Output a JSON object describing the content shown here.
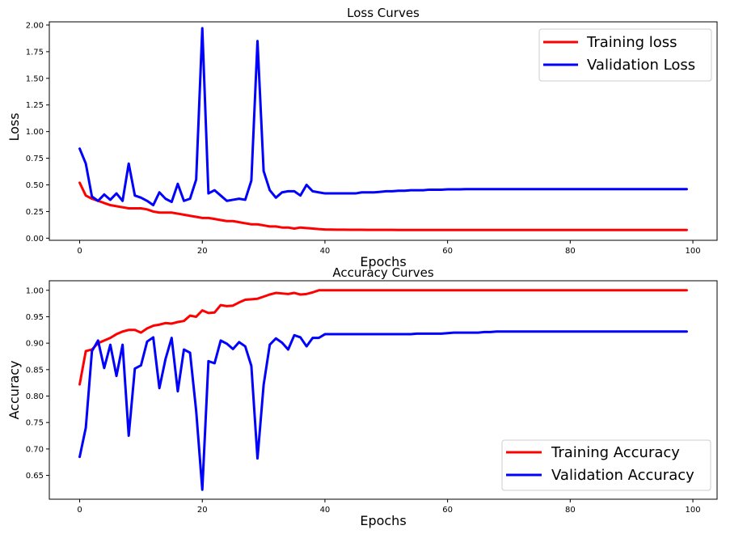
{
  "chart_data": [
    {
      "type": "line",
      "title": "Loss Curves",
      "xlabel": "Epochs",
      "ylabel": "Loss",
      "xlim": [
        -4.95,
        103.95
      ],
      "ylim": [
        -0.02,
        2.03
      ],
      "xticks": [
        0,
        20,
        40,
        60,
        80,
        100
      ],
      "xtick_labels": [
        "0",
        "20",
        "40",
        "60",
        "80",
        "100"
      ],
      "yticks": [
        0,
        0.25,
        0.5,
        0.75,
        1.0,
        1.25,
        1.5,
        1.75,
        2.0
      ],
      "ytick_labels": [
        "0.00",
        "0.25",
        "0.50",
        "0.75",
        "1.00",
        "1.25",
        "1.50",
        "1.75",
        "2.00"
      ],
      "grid": false,
      "legend_position": "top-right",
      "series": [
        {
          "name": "Training loss",
          "color": "#ff0000",
          "values": [
            0.52,
            0.4,
            0.37,
            0.35,
            0.33,
            0.31,
            0.3,
            0.29,
            0.28,
            0.28,
            0.28,
            0.27,
            0.25,
            0.24,
            0.24,
            0.24,
            0.23,
            0.22,
            0.21,
            0.2,
            0.19,
            0.19,
            0.18,
            0.17,
            0.16,
            0.16,
            0.15,
            0.14,
            0.13,
            0.13,
            0.12,
            0.11,
            0.11,
            0.1,
            0.1,
            0.09,
            0.1,
            0.095,
            0.09,
            0.085,
            0.082,
            0.081,
            0.08,
            0.08,
            0.079,
            0.079,
            0.079,
            0.078,
            0.078,
            0.078,
            0.078,
            0.078,
            0.077,
            0.077,
            0.077,
            0.077,
            0.077,
            0.077,
            0.077,
            0.077,
            0.077,
            0.077,
            0.077,
            0.077,
            0.077,
            0.077,
            0.077,
            0.077,
            0.077,
            0.077,
            0.077,
            0.077,
            0.077,
            0.077,
            0.077,
            0.077,
            0.077,
            0.077,
            0.077,
            0.077,
            0.077,
            0.077,
            0.077,
            0.077,
            0.077,
            0.077,
            0.077,
            0.077,
            0.077,
            0.077,
            0.077,
            0.077,
            0.077,
            0.077,
            0.077,
            0.077,
            0.077,
            0.077,
            0.077,
            0.077
          ]
        },
        {
          "name": "Validation Loss",
          "color": "#0000ff",
          "values": [
            0.84,
            0.7,
            0.39,
            0.35,
            0.41,
            0.36,
            0.42,
            0.35,
            0.7,
            0.4,
            0.38,
            0.35,
            0.31,
            0.43,
            0.37,
            0.34,
            0.51,
            0.35,
            0.37,
            0.55,
            1.97,
            0.42,
            0.45,
            0.4,
            0.35,
            0.36,
            0.37,
            0.36,
            0.54,
            1.85,
            0.63,
            0.45,
            0.38,
            0.43,
            0.44,
            0.44,
            0.4,
            0.5,
            0.44,
            0.43,
            0.42,
            0.42,
            0.42,
            0.42,
            0.42,
            0.42,
            0.43,
            0.43,
            0.43,
            0.435,
            0.44,
            0.44,
            0.445,
            0.445,
            0.45,
            0.45,
            0.45,
            0.455,
            0.455,
            0.455,
            0.458,
            0.458,
            0.458,
            0.46,
            0.46,
            0.46,
            0.46,
            0.46,
            0.46,
            0.46,
            0.46,
            0.46,
            0.46,
            0.46,
            0.46,
            0.46,
            0.46,
            0.46,
            0.46,
            0.46,
            0.46,
            0.46,
            0.46,
            0.46,
            0.46,
            0.46,
            0.46,
            0.46,
            0.46,
            0.46,
            0.46,
            0.46,
            0.46,
            0.46,
            0.46,
            0.46,
            0.46,
            0.46,
            0.46,
            0.46
          ]
        }
      ]
    },
    {
      "type": "line",
      "title": "Accuracy Curves",
      "xlabel": "Epochs",
      "ylabel": "Accuracy",
      "xlim": [
        -4.95,
        103.95
      ],
      "ylim": [
        0.605,
        1.018
      ],
      "xticks": [
        0,
        20,
        40,
        60,
        80,
        100
      ],
      "xtick_labels": [
        "0",
        "20",
        "40",
        "60",
        "80",
        "100"
      ],
      "yticks": [
        0.65,
        0.7,
        0.75,
        0.8,
        0.85,
        0.9,
        0.95,
        1.0
      ],
      "ytick_labels": [
        "0.65",
        "0.70",
        "0.75",
        "0.80",
        "0.85",
        "0.90",
        "0.95",
        "1.00"
      ],
      "grid": false,
      "legend_position": "bottom-right",
      "series": [
        {
          "name": "Training Accuracy",
          "color": "#ff0000",
          "values": [
            0.822,
            0.885,
            0.888,
            0.9,
            0.905,
            0.91,
            0.917,
            0.922,
            0.925,
            0.925,
            0.92,
            0.928,
            0.933,
            0.935,
            0.938,
            0.937,
            0.94,
            0.942,
            0.952,
            0.95,
            0.962,
            0.957,
            0.958,
            0.972,
            0.97,
            0.971,
            0.977,
            0.982,
            0.983,
            0.984,
            0.988,
            0.992,
            0.995,
            0.994,
            0.993,
            0.995,
            0.992,
            0.993,
            0.996,
            1.0,
            1.0,
            1.0,
            1.0,
            1.0,
            1.0,
            1.0,
            1.0,
            1.0,
            1.0,
            1.0,
            1.0,
            1.0,
            1.0,
            1.0,
            1.0,
            1.0,
            1.0,
            1.0,
            1.0,
            1.0,
            1.0,
            1.0,
            1.0,
            1.0,
            1.0,
            1.0,
            1.0,
            1.0,
            1.0,
            1.0,
            1.0,
            1.0,
            1.0,
            1.0,
            1.0,
            1.0,
            1.0,
            1.0,
            1.0,
            1.0,
            1.0,
            1.0,
            1.0,
            1.0,
            1.0,
            1.0,
            1.0,
            1.0,
            1.0,
            1.0,
            1.0,
            1.0,
            1.0,
            1.0,
            1.0,
            1.0,
            1.0,
            1.0,
            1.0,
            1.0
          ]
        },
        {
          "name": "Validation Accuracy",
          "color": "#0000ff",
          "values": [
            0.685,
            0.74,
            0.885,
            0.905,
            0.853,
            0.897,
            0.838,
            0.897,
            0.725,
            0.852,
            0.858,
            0.903,
            0.911,
            0.815,
            0.87,
            0.91,
            0.809,
            0.888,
            0.882,
            0.772,
            0.623,
            0.866,
            0.862,
            0.905,
            0.899,
            0.889,
            0.902,
            0.894,
            0.857,
            0.682,
            0.821,
            0.897,
            0.909,
            0.901,
            0.888,
            0.915,
            0.911,
            0.894,
            0.91,
            0.91,
            0.917,
            0.917,
            0.917,
            0.917,
            0.917,
            0.917,
            0.917,
            0.917,
            0.917,
            0.917,
            0.917,
            0.917,
            0.917,
            0.917,
            0.917,
            0.918,
            0.918,
            0.918,
            0.918,
            0.918,
            0.919,
            0.92,
            0.92,
            0.92,
            0.92,
            0.92,
            0.921,
            0.921,
            0.922,
            0.922,
            0.922,
            0.922,
            0.922,
            0.922,
            0.922,
            0.922,
            0.922,
            0.922,
            0.922,
            0.922,
            0.922,
            0.922,
            0.922,
            0.922,
            0.922,
            0.922,
            0.922,
            0.922,
            0.922,
            0.922,
            0.922,
            0.922,
            0.922,
            0.922,
            0.922,
            0.922,
            0.922,
            0.922,
            0.922,
            0.922
          ]
        }
      ]
    }
  ]
}
